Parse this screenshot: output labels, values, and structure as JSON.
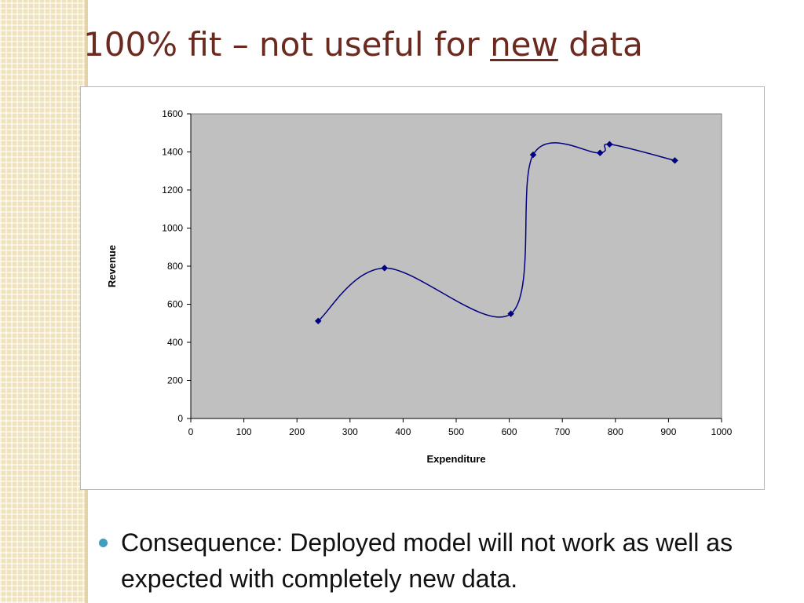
{
  "slide": {
    "title_prefix": "100% fit – not useful for ",
    "title_emphasis": "new",
    "title_suffix": " data",
    "bullet_text": "Consequence:  Deployed model will not work as well as expected with completely new data."
  },
  "colors": {
    "title": "#6b2a1f",
    "plot_area": "#c0c0c0",
    "series_line": "#000080",
    "bullet": "#3e9fbf"
  },
  "chart_data": {
    "type": "scatter",
    "xlabel": "Expenditure",
    "ylabel": "Revenue",
    "xlim": [
      0,
      1000
    ],
    "ylim": [
      0,
      1600
    ],
    "xticks": [
      0,
      100,
      200,
      300,
      400,
      500,
      600,
      700,
      800,
      900,
      1000
    ],
    "yticks": [
      0,
      200,
      400,
      600,
      800,
      1000,
      1200,
      1400,
      1600
    ],
    "grid": false,
    "legend": "none",
    "series": [
      {
        "marker": "diamond",
        "line": "smoothed",
        "points": [
          {
            "x": 240,
            "y": 512
          },
          {
            "x": 365,
            "y": 790
          },
          {
            "x": 603,
            "y": 550
          },
          {
            "x": 645,
            "y": 1385
          },
          {
            "x": 771,
            "y": 1395
          },
          {
            "x": 789,
            "y": 1440
          },
          {
            "x": 912,
            "y": 1355
          }
        ]
      }
    ]
  }
}
